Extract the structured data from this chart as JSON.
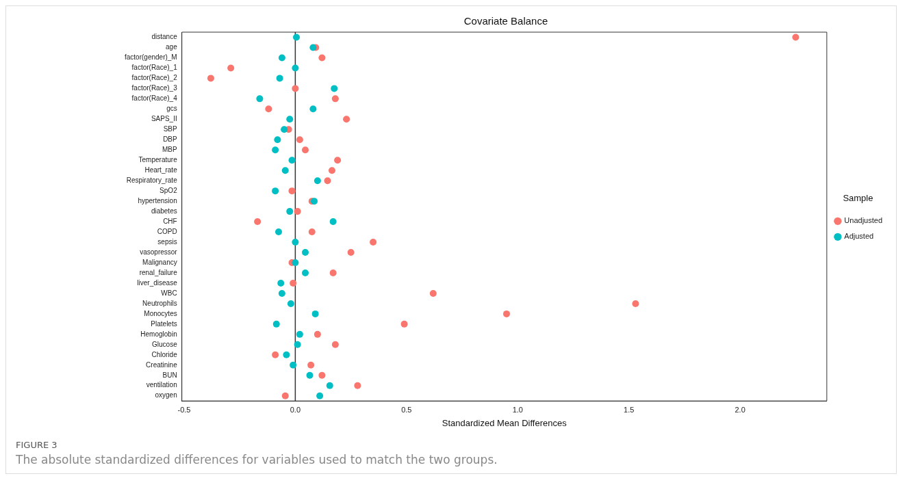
{
  "chart_data": {
    "type": "scatter",
    "orientation": "horizontal",
    "title": "Covariate Balance",
    "xlabel": "Standardized Mean Differences",
    "legend_title": "Sample",
    "legend": "right",
    "grid": false,
    "marker": "circle",
    "categories": [
      "distance",
      "age",
      "factor(gender)_M",
      "factor(Race)_1",
      "factor(Race)_2",
      "factor(Race)_3",
      "factor(Race)_4",
      "gcs",
      "SAPS_II",
      "SBP",
      "DBP",
      "MBP",
      "Temperature",
      "Heart_rate",
      "Respiratory_rate",
      "SpO2",
      "hypertension",
      "diabetes",
      "CHF",
      "COPD",
      "sepsis",
      "vasopressor",
      "Malignancy",
      "renal_failure",
      "liver_disease",
      "WBC",
      "Neutrophils",
      "Monocytes",
      "Platelets",
      "Hemoglobin",
      "Glucose",
      "Chloride",
      "Creatinine",
      "BUN",
      "ventilation",
      "oxygen"
    ],
    "series": [
      {
        "name": "Unadjusted",
        "color": "#f8766d",
        "values": [
          2.25,
          0.092,
          0.12,
          -0.29,
          -0.38,
          0.0,
          0.18,
          -0.12,
          0.23,
          -0.03,
          0.02,
          0.045,
          0.19,
          0.165,
          0.145,
          -0.015,
          0.075,
          0.01,
          -0.17,
          0.075,
          0.35,
          0.25,
          -0.015,
          0.17,
          -0.01,
          0.62,
          1.53,
          0.95,
          0.49,
          0.1,
          0.18,
          -0.09,
          0.07,
          0.12,
          0.28,
          -0.045
        ]
      },
      {
        "name": "Adjusted",
        "color": "#00bfc4",
        "values": [
          0.005,
          0.08,
          -0.06,
          0.0,
          -0.07,
          0.175,
          -0.16,
          0.08,
          -0.025,
          -0.05,
          -0.08,
          -0.09,
          -0.015,
          -0.045,
          0.1,
          -0.09,
          0.085,
          -0.025,
          0.17,
          -0.075,
          0.0,
          0.045,
          0.0,
          0.045,
          -0.065,
          -0.06,
          -0.02,
          0.09,
          -0.085,
          0.02,
          0.01,
          -0.04,
          -0.01,
          0.065,
          0.155,
          0.11
        ]
      }
    ],
    "xlim": [
      -0.51,
      2.39
    ],
    "xticks": [
      -0.5,
      {
        "value": 0,
        "label": "0.0"
      },
      0.5,
      {
        "value": 1,
        "label": "1.0"
      },
      1.5,
      {
        "value": 2,
        "label": "2.0"
      }
    ],
    "ref_lines": [
      {
        "axis": "x",
        "value": 0,
        "color": "#333333"
      }
    ],
    "annotations": [
      "FIGURE 3",
      "The absolute standardized differences for variables used to match the two groups."
    ]
  }
}
